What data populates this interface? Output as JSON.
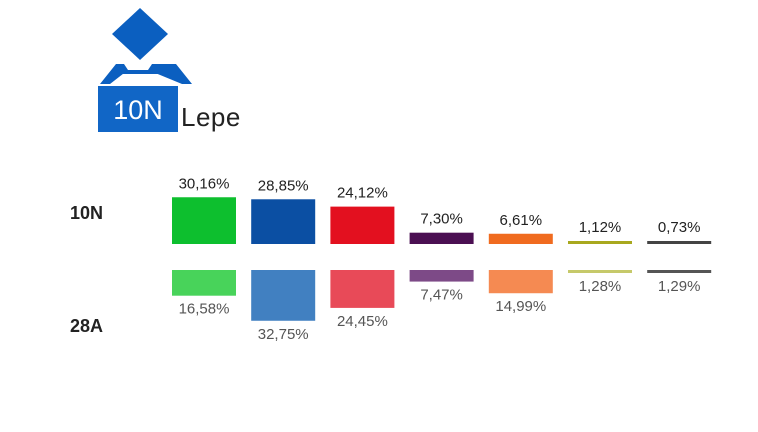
{
  "header": {
    "logo_text": "10N",
    "place": "Lepe"
  },
  "chart_data": {
    "type": "bar",
    "categories": [
      "",
      "",
      "",
      "",
      "",
      "",
      ""
    ],
    "series": [
      {
        "name": "10N",
        "values": [
          30.16,
          28.85,
          24.12,
          7.3,
          6.61,
          1.12,
          0.73
        ],
        "labels": [
          "30,16%",
          "28,85%",
          "24,12%",
          "7,30%",
          "6,61%",
          "1,12%",
          "0,73%"
        ],
        "colors": [
          "#0dbf2e",
          "#0b4fa3",
          "#e3101f",
          "#4b0f52",
          "#f06b1f",
          "#a8a81e",
          "#444444"
        ]
      },
      {
        "name": "28A",
        "values": [
          16.58,
          32.75,
          24.45,
          7.47,
          14.99,
          1.28,
          1.29
        ],
        "labels": [
          "16,58%",
          "32,75%",
          "24,45%",
          "7,47%",
          "14,99%",
          "1,28%",
          "1,29%"
        ],
        "colors": [
          "#48d35a",
          "#4180c1",
          "#e84a58",
          "#7d4a87",
          "#f58a52",
          "#c6c96a",
          "#555555"
        ]
      }
    ],
    "xlabel": "",
    "ylabel": "",
    "grid": false,
    "legend": "none"
  }
}
